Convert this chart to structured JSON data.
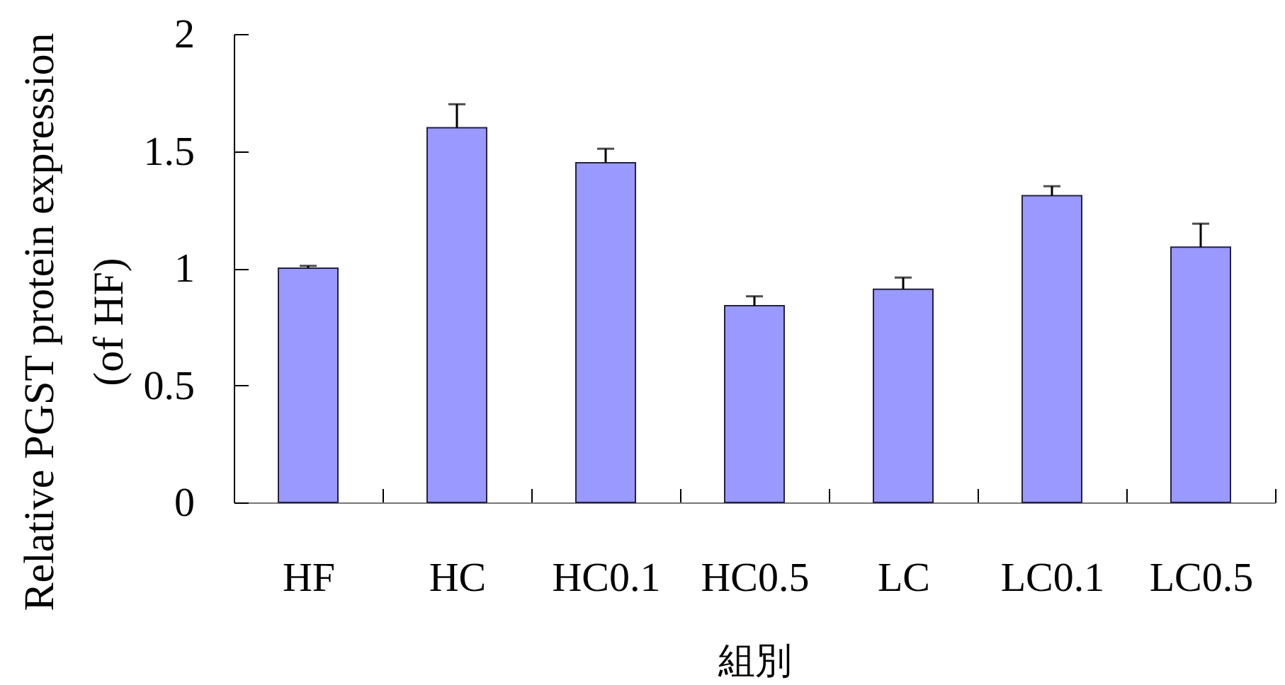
{
  "chart_data": {
    "type": "bar",
    "xlabel": "組別",
    "ylabel": "Relative PGST protein expression\n(of HF)",
    "categories": [
      "HF",
      "HC",
      "HC0.1",
      "HC0.5",
      "LC",
      "LC0.1",
      "LC0.5"
    ],
    "values": [
      1.0,
      1.6,
      1.45,
      0.84,
      0.91,
      1.31,
      1.09
    ],
    "errors": [
      [
        1.0,
        1.01
      ],
      [
        1.6,
        1.7
      ],
      [
        1.45,
        1.51
      ],
      [
        0.84,
        0.88
      ],
      [
        0.91,
        0.96
      ],
      [
        1.31,
        1.35
      ],
      [
        1.09,
        1.19
      ]
    ],
    "color": "#9999ff",
    "ylim": [
      0,
      2
    ],
    "yticks": [
      0,
      0.5,
      1,
      1.5,
      2
    ],
    "grid": false
  }
}
